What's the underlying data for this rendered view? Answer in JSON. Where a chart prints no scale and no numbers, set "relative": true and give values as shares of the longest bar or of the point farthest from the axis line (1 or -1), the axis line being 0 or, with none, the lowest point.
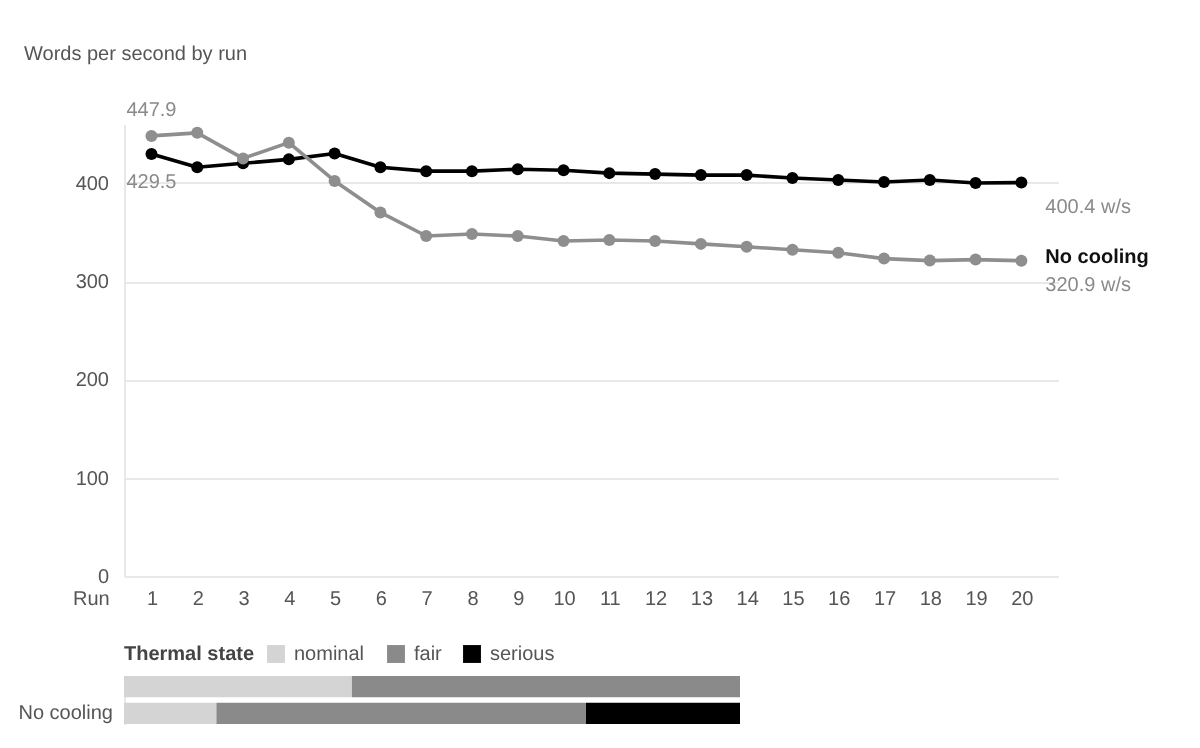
{
  "chart_data": [
    {
      "type": "line",
      "title": "Words per second by run",
      "xlabel": "Run",
      "x": [
        1,
        2,
        3,
        4,
        5,
        6,
        7,
        8,
        9,
        10,
        11,
        12,
        13,
        14,
        15,
        16,
        17,
        18,
        19,
        20
      ],
      "series": [
        {
          "color": "#000000",
          "values": [
            429.5,
            416,
            420,
            424,
            430,
            416,
            412,
            412,
            414,
            413,
            410,
            409,
            408,
            408,
            405,
            403,
            401,
            403,
            400,
            400.4
          ],
          "value_labels": [
            "429.5",
            null,
            null,
            null,
            null,
            null,
            null,
            null,
            null,
            null,
            null,
            null,
            null,
            null,
            null,
            null,
            null,
            null,
            null,
            "400.4 w/s"
          ]
        },
        {
          "name": "No cooling",
          "color": "#8e8e8e",
          "values": [
            447.9,
            451,
            425,
            441,
            402,
            370,
            346,
            348,
            346,
            341,
            342,
            341,
            338,
            335,
            332,
            329,
            323,
            321,
            322,
            320.9
          ],
          "value_labels": [
            "447.9",
            null,
            null,
            null,
            null,
            null,
            null,
            null,
            null,
            null,
            null,
            null,
            null,
            null,
            null,
            null,
            null,
            null,
            null,
            "320.9 w/s"
          ]
        }
      ],
      "xlim": [
        0.4,
        20.8
      ],
      "xticks": [
        1,
        2,
        3,
        4,
        5,
        6,
        7,
        8,
        9,
        10,
        11,
        12,
        13,
        14,
        15,
        16,
        17,
        18,
        19,
        20
      ],
      "ylim": [
        0,
        460
      ],
      "yticks": [
        0,
        100,
        200,
        300,
        400
      ],
      "grid": "y",
      "marker": "circle",
      "legend": false
    },
    {
      "type": "bar",
      "orientation": "horizontal",
      "stacked": true,
      "relative": true,
      "legend_title": "Thermal state",
      "legend": "top",
      "categories": [
        null,
        "No cooling"
      ],
      "series": [
        {
          "name": "nominal",
          "color": "#d4d4d4",
          "values": [
            0.37,
            0.15
          ]
        },
        {
          "name": "fair",
          "color": "#8a8a8a",
          "values": [
            0.63,
            0.6
          ]
        },
        {
          "name": "serious",
          "color": "#000000",
          "values": [
            null,
            0.25
          ]
        }
      ]
    }
  ]
}
